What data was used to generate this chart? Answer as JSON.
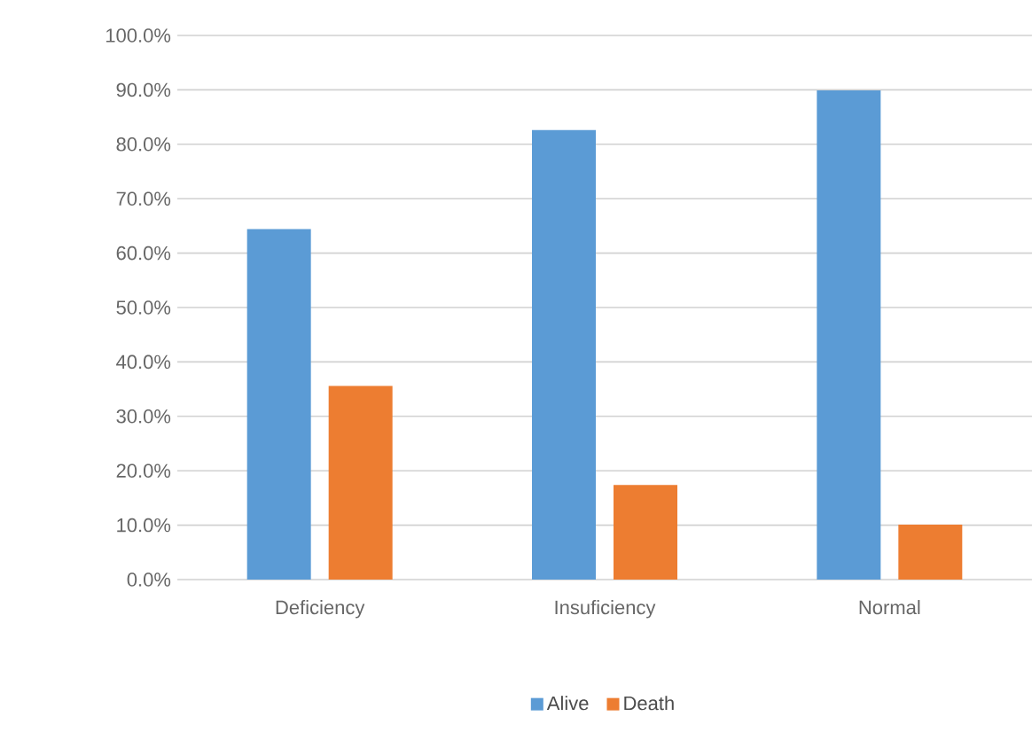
{
  "chart_data": {
    "type": "bar",
    "categories": [
      "Deficiency",
      "Insuficiency",
      "Normal"
    ],
    "series": [
      {
        "name": "Alive",
        "color": "#5b9bd5",
        "values": [
          64.4,
          82.6,
          89.9
        ]
      },
      {
        "name": "Death",
        "color": "#ed7d31",
        "values": [
          35.6,
          17.4,
          10.1
        ]
      }
    ],
    "ylim": [
      0,
      100
    ],
    "yticks": [
      {
        "value": 0,
        "label": "0.0%"
      },
      {
        "value": 10,
        "label": "10.0%"
      },
      {
        "value": 20,
        "label": "20.0%"
      },
      {
        "value": 30,
        "label": "30.0%"
      },
      {
        "value": 40,
        "label": "40.0%"
      },
      {
        "value": 50,
        "label": "50.0%"
      },
      {
        "value": 60,
        "label": "60.0%"
      },
      {
        "value": 70,
        "label": "70.0%"
      },
      {
        "value": 80,
        "label": "80.0%"
      },
      {
        "value": 90,
        "label": "90.0%"
      },
      {
        "value": 100,
        "label": "100.0%"
      }
    ],
    "grid": "y",
    "legend": "bottom"
  }
}
